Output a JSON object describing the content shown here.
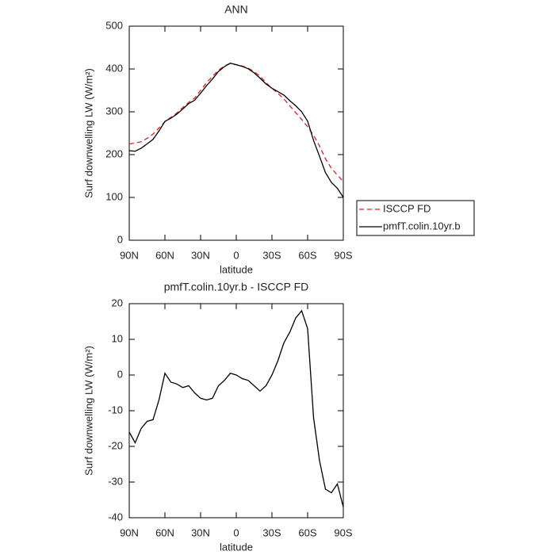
{
  "chart_data": [
    {
      "type": "line",
      "title": "ANN",
      "x_label": "latitude",
      "y_label": "Surf downwelling LW (W/m²)",
      "x": [
        90,
        85,
        80,
        75,
        70,
        65,
        60,
        55,
        50,
        45,
        40,
        35,
        30,
        25,
        20,
        15,
        10,
        5,
        0,
        -5,
        -10,
        -15,
        -20,
        -25,
        -30,
        -35,
        -40,
        -45,
        -50,
        -55,
        -60,
        -65,
        -70,
        -75,
        -80,
        -85,
        -90
      ],
      "series": [
        {
          "name": "ISCCP FD",
          "color": "#e02020",
          "dashed": true,
          "values": [
            225,
            227,
            230,
            238,
            248,
            262,
            277,
            287,
            297,
            310,
            322,
            332,
            350,
            368,
            383,
            397,
            407,
            413,
            410,
            407,
            402,
            394,
            383,
            368,
            355,
            343,
            330,
            314,
            298,
            282,
            265,
            245,
            220,
            190,
            168,
            152,
            137
          ]
        },
        {
          "name": "pmfT.colin.10yr.b",
          "color": "#000000",
          "dashed": false,
          "values": [
            209,
            208,
            215,
            225,
            235.5,
            255,
            277.5,
            285,
            294.5,
            306.5,
            319,
            327,
            343.5,
            361,
            376.5,
            394,
            405.5,
            413.5,
            410,
            406,
            400.5,
            391,
            378.5,
            365,
            355,
            347,
            339,
            326,
            314,
            300,
            278,
            233,
            196,
            158,
            135,
            121.5,
            100
          ]
        }
      ],
      "xlim": [
        90,
        -90
      ],
      "xticks": [
        {
          "value": 90,
          "label": "90N"
        },
        {
          "value": 60,
          "label": "60N"
        },
        {
          "value": 30,
          "label": "30N"
        },
        0,
        {
          "value": -30,
          "label": "30S"
        },
        {
          "value": -60,
          "label": "60S"
        },
        {
          "value": -90,
          "label": "90S"
        }
      ],
      "ylim": [
        0,
        500
      ],
      "yticks": [
        0,
        100,
        200,
        300,
        400,
        500
      ],
      "legend": "right"
    },
    {
      "type": "line",
      "title": "pmfT.colin.10yr.b - ISCCP FD",
      "x_label": "latitude",
      "y_label": "Surf downwelling LW (W/m²)",
      "x": [
        90,
        85,
        80,
        75,
        70,
        65,
        60,
        55,
        50,
        45,
        40,
        35,
        30,
        25,
        20,
        15,
        10,
        5,
        0,
        -5,
        -10,
        -15,
        -20,
        -25,
        -30,
        -35,
        -40,
        -45,
        -50,
        -55,
        -60,
        -65,
        -70,
        -75,
        -80,
        -85,
        -90
      ],
      "series": [
        {
          "color": "#000000",
          "dashed": false,
          "values": [
            -16,
            -19,
            -15,
            -13,
            -12.5,
            -7,
            0.5,
            -2,
            -2.5,
            -3.5,
            -3,
            -5,
            -6.5,
            -7,
            -6.5,
            -3,
            -1.5,
            0.5,
            0,
            -1,
            -1.5,
            -3,
            -4.5,
            -3,
            0,
            4,
            9,
            12,
            16,
            18,
            13,
            -12,
            -24,
            -32,
            -33,
            -30.5,
            -37
          ]
        }
      ],
      "xlim": [
        90,
        -90
      ],
      "xticks": [
        {
          "value": 90,
          "label": "90N"
        },
        {
          "value": 60,
          "label": "60N"
        },
        {
          "value": 30,
          "label": "30N"
        },
        0,
        {
          "value": -30,
          "label": "30S"
        },
        {
          "value": -60,
          "label": "60S"
        },
        {
          "value": -90,
          "label": "90S"
        }
      ],
      "ylim": [
        -40,
        20
      ],
      "yticks": [
        -40,
        -30,
        -20,
        -10,
        0,
        10,
        20
      ]
    }
  ]
}
